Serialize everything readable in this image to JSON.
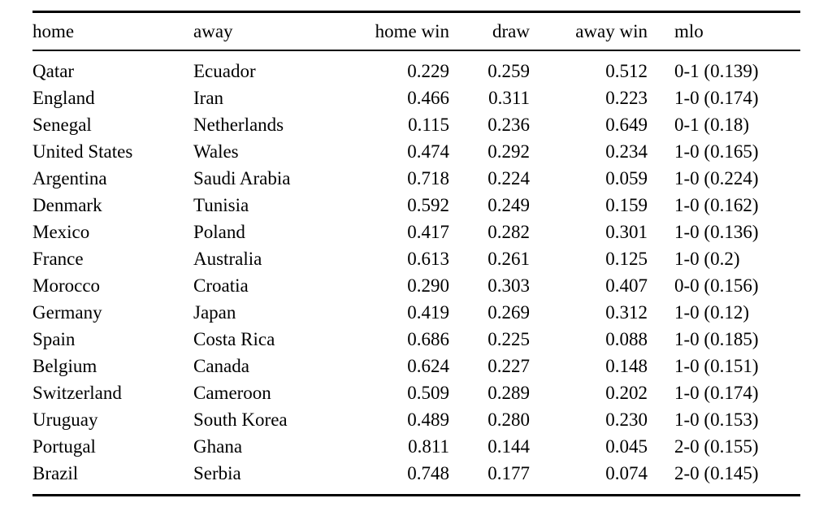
{
  "table": {
    "name": "match-outcome-probabilities",
    "columns": [
      {
        "key": "home",
        "label": "home",
        "align": "left"
      },
      {
        "key": "away",
        "label": "away",
        "align": "left"
      },
      {
        "key": "home_win",
        "label": "home win",
        "align": "right"
      },
      {
        "key": "draw",
        "label": "draw",
        "align": "right"
      },
      {
        "key": "away_win",
        "label": "away win",
        "align": "right"
      },
      {
        "key": "mlo",
        "label": "mlo",
        "align": "left"
      }
    ],
    "rows": [
      [
        "Qatar",
        "Ecuador",
        "0.229",
        "0.259",
        "0.512",
        "0-1 (0.139)"
      ],
      [
        "England",
        "Iran",
        "0.466",
        "0.311",
        "0.223",
        "1-0 (0.174)"
      ],
      [
        "Senegal",
        "Netherlands",
        "0.115",
        "0.236",
        "0.649",
        "0-1 (0.18)"
      ],
      [
        "United States",
        "Wales",
        "0.474",
        "0.292",
        "0.234",
        "1-0 (0.165)"
      ],
      [
        "Argentina",
        "Saudi Arabia",
        "0.718",
        "0.224",
        "0.059",
        "1-0 (0.224)"
      ],
      [
        "Denmark",
        "Tunisia",
        "0.592",
        "0.249",
        "0.159",
        "1-0 (0.162)"
      ],
      [
        "Mexico",
        "Poland",
        "0.417",
        "0.282",
        "0.301",
        "1-0 (0.136)"
      ],
      [
        "France",
        "Australia",
        "0.613",
        "0.261",
        "0.125",
        "1-0 (0.2)"
      ],
      [
        "Morocco",
        "Croatia",
        "0.290",
        "0.303",
        "0.407",
        "0-0 (0.156)"
      ],
      [
        "Germany",
        "Japan",
        "0.419",
        "0.269",
        "0.312",
        "1-0 (0.12)"
      ],
      [
        "Spain",
        "Costa Rica",
        "0.686",
        "0.225",
        "0.088",
        "1-0 (0.185)"
      ],
      [
        "Belgium",
        "Canada",
        "0.624",
        "0.227",
        "0.148",
        "1-0 (0.151)"
      ],
      [
        "Switzerland",
        "Cameroon",
        "0.509",
        "0.289",
        "0.202",
        "1-0 (0.174)"
      ],
      [
        "Uruguay",
        "South Korea",
        "0.489",
        "0.280",
        "0.230",
        "1-0 (0.153)"
      ],
      [
        "Portugal",
        "Ghana",
        "0.811",
        "0.144",
        "0.045",
        "2-0 (0.155)"
      ],
      [
        "Brazil",
        "Serbia",
        "0.748",
        "0.177",
        "0.074",
        "2-0 (0.145)"
      ]
    ],
    "colors": {
      "text": "#000000",
      "rule": "#000000",
      "background": "#ffffff"
    }
  }
}
